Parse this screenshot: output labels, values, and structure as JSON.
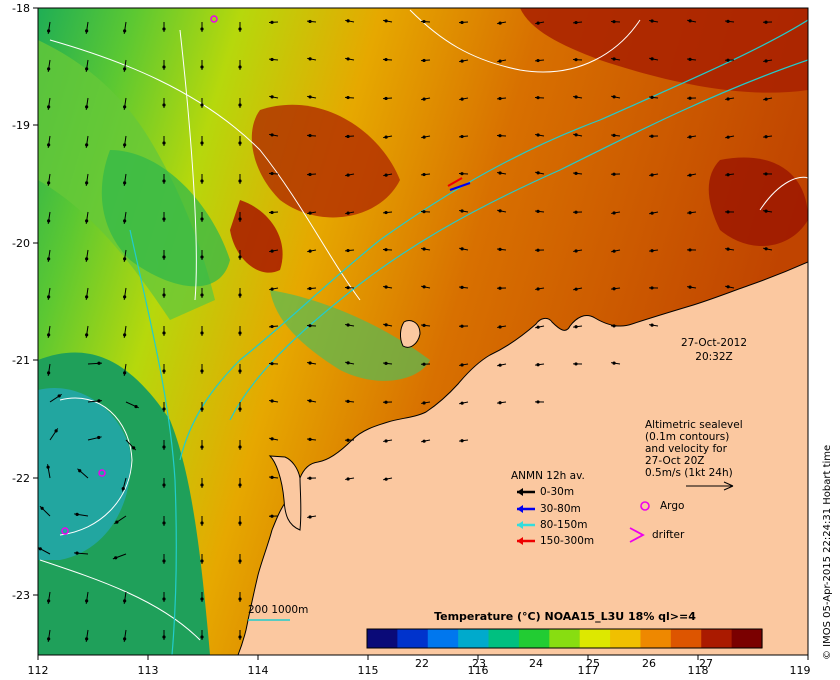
{
  "map": {
    "x_ticks": [
      "112",
      "113",
      "114",
      "115",
      "116",
      "117",
      "118",
      "119"
    ],
    "y_ticks": [
      "-18",
      "-19",
      "-20",
      "-21",
      "-22",
      "-23"
    ]
  },
  "timestamp": {
    "date": "27-Oct-2012",
    "time": "20:32Z"
  },
  "altimetry": {
    "lines": [
      "Altimetric sealevel",
      "(0.1m contours)",
      "and velocity for",
      "27-Oct 20Z",
      "0.5m/s (1kt 24h)"
    ]
  },
  "anmn_legend": {
    "title": "ANMN 12h av.",
    "items": [
      {
        "label": "0-30m",
        "color": "#000000"
      },
      {
        "label": "30-80m",
        "color": "#0000ee"
      },
      {
        "label": "80-150m",
        "color": "#33dddd"
      },
      {
        "label": "150-300m",
        "color": "#ee0000"
      }
    ]
  },
  "markers": {
    "argo": "Argo",
    "drifter": "drifter"
  },
  "bathymetry": {
    "label": "200  1000m"
  },
  "colorbar": {
    "title": "Temperature (°C) NOAA15_L3U 18% ql>=4",
    "ticks": [
      "22",
      "23",
      "24",
      "25",
      "26",
      "27"
    ],
    "colors": [
      "#0a0a78",
      "#0033cc",
      "#0077ee",
      "#00aacc",
      "#00c080",
      "#22cc33",
      "#88dd11",
      "#dde800",
      "#f0c000",
      "#ee8800",
      "#dd5500",
      "#aa1a00",
      "#7a0000"
    ]
  },
  "credit": "© IMOS 05-Apr-2015 22:24:31 Hobart time"
}
